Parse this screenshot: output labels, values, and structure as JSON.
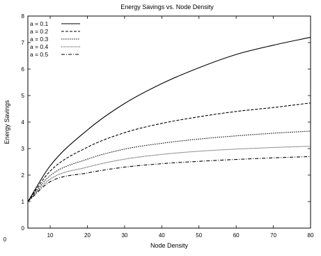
{
  "chart_data": {
    "type": "line",
    "title": "Energy Savings vs. Node Density",
    "xlabel": "Node Density",
    "ylabel": "Energy Savings",
    "xlim": [
      4,
      80
    ],
    "ylim": [
      0,
      8
    ],
    "x_ticks": [
      10,
      20,
      30,
      40,
      50,
      60,
      70,
      80
    ],
    "y_ticks": [
      0,
      1,
      2,
      3,
      4,
      5,
      6,
      7,
      8
    ],
    "stray_tick_labels": [
      "0"
    ],
    "grid": false,
    "legend_position": "top-left",
    "x": [
      4,
      10,
      20,
      30,
      40,
      50,
      60,
      70,
      80
    ],
    "series": [
      {
        "name": "a = 0.1",
        "dash": "solid",
        "values": [
          1.0,
          2.35,
          3.7,
          4.7,
          5.45,
          6.05,
          6.55,
          6.9,
          7.2
        ]
      },
      {
        "name": "a = 0.2",
        "dash": "dashed",
        "values": [
          1.0,
          2.15,
          3.05,
          3.6,
          3.95,
          4.2,
          4.4,
          4.55,
          4.72
        ]
      },
      {
        "name": "a = 0.3",
        "dash": "dotted",
        "values": [
          1.0,
          1.98,
          2.6,
          2.98,
          3.2,
          3.36,
          3.48,
          3.58,
          3.66
        ]
      },
      {
        "name": "a = 0.4",
        "dash": "fine-dot",
        "values": [
          1.0,
          1.85,
          2.3,
          2.6,
          2.78,
          2.9,
          2.98,
          3.04,
          3.09
        ]
      },
      {
        "name": "a = 0.5",
        "dash": "dash-dot",
        "values": [
          1.0,
          1.75,
          2.08,
          2.3,
          2.43,
          2.52,
          2.59,
          2.65,
          2.7
        ]
      }
    ]
  }
}
